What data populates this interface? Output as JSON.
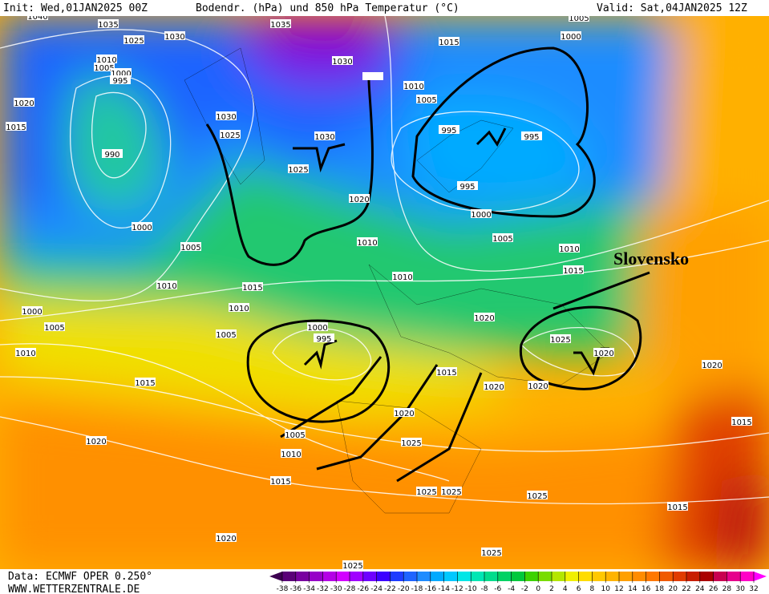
{
  "header": {
    "init": "Init: Wed,01JAN2025 00Z",
    "title": "Bodendr. (hPa) und 850 hPa Temperatur (°C)",
    "valid": "Valid: Sat,04JAN2025 12Z"
  },
  "footer": {
    "data": "Data: ECMWF OPER 0.250°",
    "site": "WWW.WETTERZENTRALE.DE"
  },
  "annotation": "Slovensko",
  "isobar_labels": [
    1040,
    1035,
    1025,
    1030,
    1035,
    1030,
    1015,
    1005,
    1000,
    1010,
    1005,
    1000,
    995,
    1020,
    1015,
    990,
    1030,
    1025,
    1030,
    1025,
    1010,
    1005,
    995,
    995,
    995,
    1000,
    1020,
    1000,
    1005,
    1010,
    1005,
    1010,
    1015,
    1010,
    1010,
    1010,
    1015,
    1000,
    1005,
    1010,
    1005,
    1000,
    995,
    1020,
    1025,
    1020,
    1020,
    1015,
    1015,
    1020,
    1020,
    1020,
    1005,
    1010,
    1025,
    1020,
    1015,
    1025,
    1025,
    1025,
    1015,
    1015,
    1020,
    1025,
    1025
  ],
  "colorbar": {
    "ticks": [
      -38,
      -36,
      -34,
      -32,
      -30,
      -28,
      -26,
      -24,
      -22,
      -20,
      -18,
      -16,
      -14,
      -12,
      -10,
      -8,
      -6,
      -4,
      -2,
      0,
      2,
      4,
      6,
      8,
      10,
      12,
      14,
      16,
      18,
      20,
      22,
      24,
      26,
      28,
      30,
      32
    ],
    "colors": [
      "#3c0050",
      "#5a0078",
      "#7800a0",
      "#9600c8",
      "#b400e6",
      "#d200ff",
      "#a000ff",
      "#6e00ff",
      "#3c00ff",
      "#1e3cff",
      "#1e64ff",
      "#1e8cff",
      "#00aaff",
      "#00c8ff",
      "#00e6e6",
      "#00e6b4",
      "#00dc8c",
      "#00d264",
      "#00c83c",
      "#3cd200",
      "#78dc00",
      "#b4e600",
      "#f0f000",
      "#ffdc00",
      "#ffc800",
      "#ffb400",
      "#ffa000",
      "#ff8c00",
      "#ff7800",
      "#f05a00",
      "#e13c00",
      "#c81e00",
      "#aa0000",
      "#c80050",
      "#e6008c",
      "#ff00c8",
      "#ff00ff"
    ]
  }
}
